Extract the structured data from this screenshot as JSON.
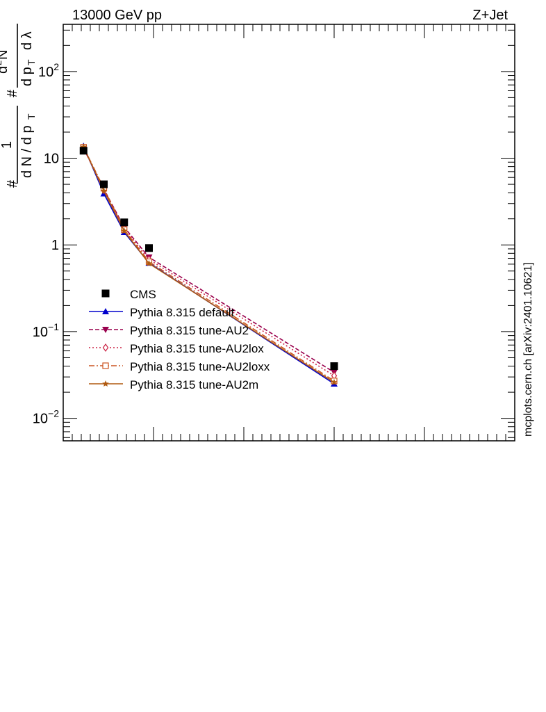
{
  "header": {
    "left": "13000 GeV pp",
    "right": "Z+Jet"
  },
  "watermark": "mcplots.cern.ch [arXiv:2401.10621]",
  "chart_data": {
    "type": "line",
    "title": "",
    "ylabel": "#frac{1}{dN / dp_T} #frac{d^2N}{dp_T dλ}",
    "yscale": "log",
    "ylim": [
      0.0055,
      350
    ],
    "xlim": [
      0,
      1
    ],
    "grid": false,
    "legend_position": "lower-left",
    "y_ticks": [
      {
        "value": 0.01,
        "label": "10",
        "sup": "−2"
      },
      {
        "value": 0.1,
        "label": "10",
        "sup": "−1"
      },
      {
        "value": 1,
        "label": "1",
        "sup": ""
      },
      {
        "value": 10,
        "label": "10",
        "sup": ""
      },
      {
        "value": 100,
        "label": "10",
        "sup": "2"
      }
    ],
    "series": [
      {
        "name": "CMS",
        "color": "#000000",
        "marker": "square",
        "style": "points",
        "x": [
          0.045,
          0.09,
          0.135,
          0.19,
          0.6
        ],
        "y": [
          12.2,
          5.0,
          1.82,
          0.92,
          0.04
        ]
      },
      {
        "name": "Pythia 8.315 default",
        "color": "#0000cc",
        "marker": "triangle-up",
        "style": "solid",
        "x": [
          0.045,
          0.09,
          0.135,
          0.19,
          0.6
        ],
        "y": [
          13.8,
          3.9,
          1.4,
          0.62,
          0.025
        ]
      },
      {
        "name": "Pythia 8.315 tune-AU2",
        "color": "#99004d",
        "marker": "triangle-down",
        "style": "dashed",
        "x": [
          0.045,
          0.09,
          0.135,
          0.19,
          0.6
        ],
        "y": [
          13.0,
          4.4,
          1.6,
          0.72,
          0.034
        ]
      },
      {
        "name": "Pythia 8.315 tune-AU2lox",
        "color": "#cc2244",
        "marker": "diamond-open",
        "style": "dotted",
        "x": [
          0.045,
          0.09,
          0.135,
          0.19,
          0.6
        ],
        "y": [
          13.2,
          4.3,
          1.55,
          0.68,
          0.031
        ]
      },
      {
        "name": "Pythia 8.315 tune-AU2loxx",
        "color": "#cc5522",
        "marker": "square-open",
        "style": "dashdot",
        "x": [
          0.045,
          0.09,
          0.135,
          0.19,
          0.6
        ],
        "y": [
          13.4,
          4.5,
          1.5,
          0.64,
          0.027
        ]
      },
      {
        "name": "Pythia 8.315 tune-AU2m",
        "color": "#b05a10",
        "marker": "star",
        "style": "solid",
        "x": [
          0.045,
          0.09,
          0.135,
          0.19,
          0.6
        ],
        "y": [
          13.5,
          4.2,
          1.45,
          0.61,
          0.026
        ]
      }
    ]
  }
}
